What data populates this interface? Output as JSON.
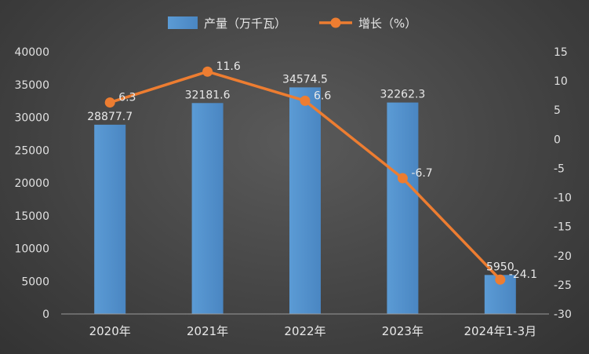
{
  "chart_data": {
    "type": "bar",
    "categories": [
      "2020年",
      "2021年",
      "2022年",
      "2023年",
      "2024年1-3月"
    ],
    "series": [
      {
        "name": "产量（万千瓦）",
        "type": "bar",
        "axis": "left",
        "values": [
          28877.7,
          32181.6,
          34574.5,
          32262.3,
          5950
        ],
        "labels": [
          "28877.7",
          "32181.6",
          "34574.5",
          "32262.3",
          "5950"
        ]
      },
      {
        "name": "增长（%）",
        "type": "line",
        "axis": "right",
        "values": [
          6.3,
          11.6,
          6.6,
          -6.7,
          -24.1
        ],
        "labels": [
          "6.3",
          "11.6",
          "6.6",
          "-6.7",
          "-24.1"
        ]
      }
    ],
    "y_left": {
      "min": 0,
      "max": 40000,
      "ticks": [
        "0",
        "5000",
        "10000",
        "15000",
        "20000",
        "25000",
        "30000",
        "35000",
        "40000"
      ]
    },
    "y_right": {
      "min": -30,
      "max": 15,
      "ticks": [
        "-30",
        "-25",
        "-20",
        "-15",
        "-10",
        "-5",
        "0",
        "5",
        "10",
        "15"
      ]
    },
    "legend_position": "top",
    "grid": false,
    "colors": {
      "bar": "#5b9bd5",
      "line": "#ed7d31"
    }
  }
}
